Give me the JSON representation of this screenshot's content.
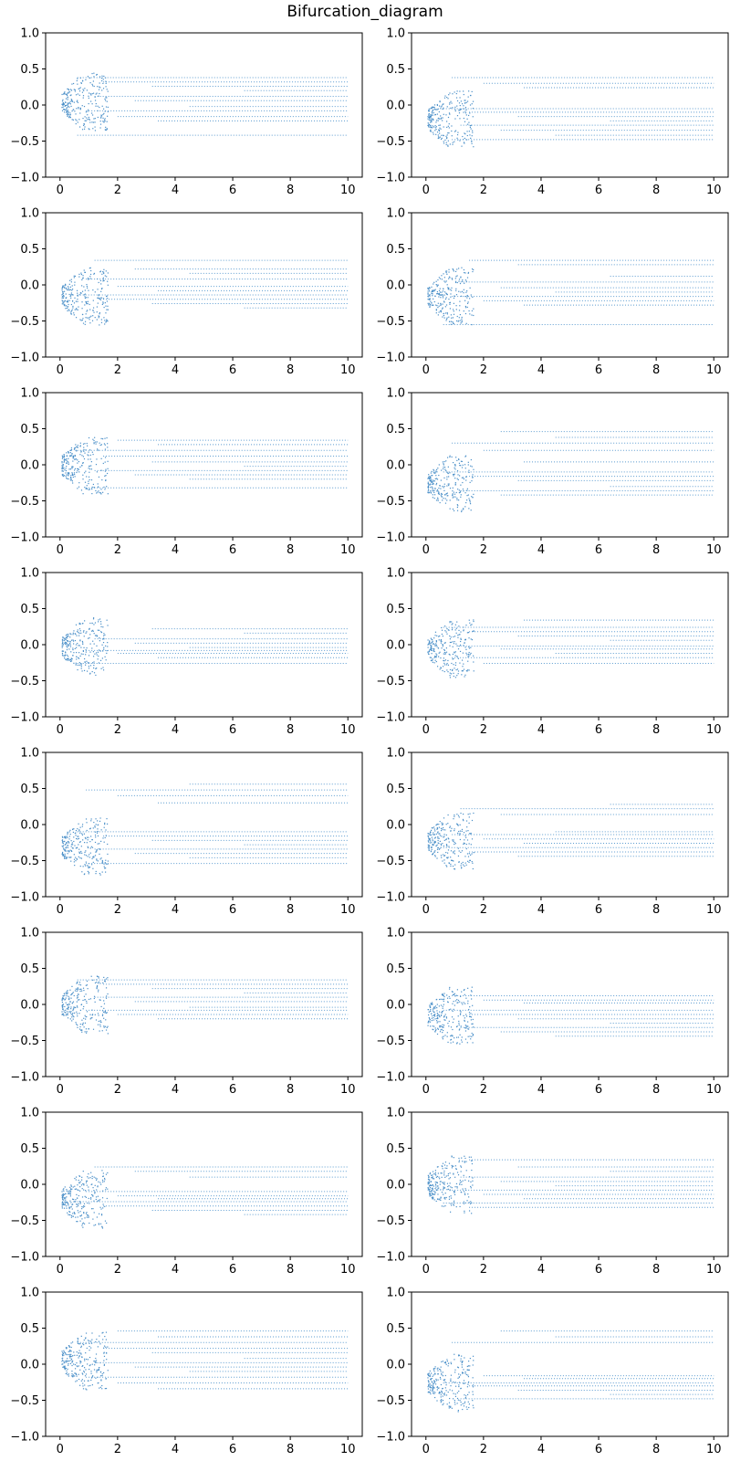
{
  "chart_data": {
    "type": "scatter",
    "title": "Bifurcation_diagram",
    "layout": {
      "rows": 8,
      "cols": 2
    },
    "xlim": [
      0,
      10
    ],
    "ylim": [
      -1.0,
      1.0
    ],
    "xticks": [
      0,
      2,
      4,
      6,
      8,
      10
    ],
    "xtick_labels": [
      "0",
      "2",
      "4",
      "6",
      "8",
      "10"
    ],
    "yticks": [
      1.0,
      0.5,
      0.0,
      -0.5,
      -1.0
    ],
    "ytick_labels": [
      "1.0",
      "0.5",
      "0.0",
      "−0.5",
      "−1.0"
    ],
    "marker_color": "#1f77b4",
    "subplots": [
      {
        "center": 0.05,
        "branches": [
          0.38,
          0.32,
          0.26,
          0.2,
          0.12,
          0.06,
          -0.02,
          -0.08,
          -0.16,
          -0.22,
          -0.42
        ]
      },
      {
        "center": -0.2,
        "branches": [
          0.38,
          0.3,
          0.24,
          -0.05,
          -0.1,
          -0.16,
          -0.22,
          -0.28,
          -0.35,
          -0.42,
          -0.48
        ]
      },
      {
        "center": -0.15,
        "branches": [
          0.34,
          0.22,
          0.16,
          0.08,
          -0.02,
          -0.08,
          -0.14,
          -0.2,
          -0.26,
          -0.32
        ]
      },
      {
        "center": -0.15,
        "branches": [
          0.34,
          0.28,
          0.12,
          0.04,
          -0.04,
          -0.1,
          -0.16,
          -0.22,
          -0.28,
          -0.55
        ]
      },
      {
        "center": 0.0,
        "branches": [
          0.34,
          0.28,
          0.2,
          0.12,
          0.04,
          -0.02,
          -0.08,
          -0.14,
          -0.2,
          -0.32
        ]
      },
      {
        "center": -0.25,
        "branches": [
          0.46,
          0.38,
          0.3,
          0.2,
          0.04,
          -0.1,
          -0.16,
          -0.22,
          -0.3,
          -0.36,
          -0.42
        ]
      },
      {
        "center": -0.02,
        "branches": [
          0.22,
          0.16,
          0.08,
          0.02,
          -0.04,
          -0.08,
          -0.12,
          -0.18,
          -0.26
        ]
      },
      {
        "center": -0.05,
        "branches": [
          0.34,
          0.24,
          0.18,
          0.12,
          0.06,
          -0.02,
          -0.06,
          -0.12,
          -0.18,
          -0.26
        ]
      },
      {
        "center": -0.3,
        "branches": [
          0.56,
          0.48,
          0.4,
          0.3,
          -0.1,
          -0.16,
          -0.22,
          -0.28,
          -0.34,
          -0.4,
          -0.46,
          -0.54
        ]
      },
      {
        "center": -0.22,
        "branches": [
          0.28,
          0.22,
          0.14,
          -0.1,
          -0.14,
          -0.2,
          -0.26,
          -0.32,
          -0.38,
          -0.44
        ]
      },
      {
        "center": 0.0,
        "branches": [
          0.34,
          0.28,
          0.22,
          0.16,
          0.1,
          0.04,
          -0.04,
          -0.08,
          -0.14,
          -0.2
        ]
      },
      {
        "center": -0.15,
        "branches": [
          0.12,
          0.06,
          0.02,
          -0.08,
          -0.14,
          -0.2,
          -0.26,
          -0.32,
          -0.38,
          -0.44
        ]
      },
      {
        "center": -0.2,
        "branches": [
          0.24,
          0.18,
          0.1,
          -0.1,
          -0.16,
          -0.2,
          -0.24,
          -0.3,
          -0.36,
          -0.42
        ]
      },
      {
        "center": 0.0,
        "branches": [
          0.34,
          0.24,
          0.18,
          0.1,
          0.04,
          -0.02,
          -0.08,
          -0.14,
          -0.2,
          -0.26,
          -0.32
        ]
      },
      {
        "center": 0.05,
        "branches": [
          0.46,
          0.38,
          0.3,
          0.22,
          0.16,
          0.08,
          0.02,
          -0.04,
          -0.1,
          -0.18,
          -0.26,
          -0.34
        ]
      },
      {
        "center": -0.25,
        "branches": [
          0.46,
          0.38,
          0.3,
          -0.16,
          -0.2,
          -0.26,
          -0.3,
          -0.36,
          -0.42,
          -0.48
        ]
      }
    ]
  }
}
